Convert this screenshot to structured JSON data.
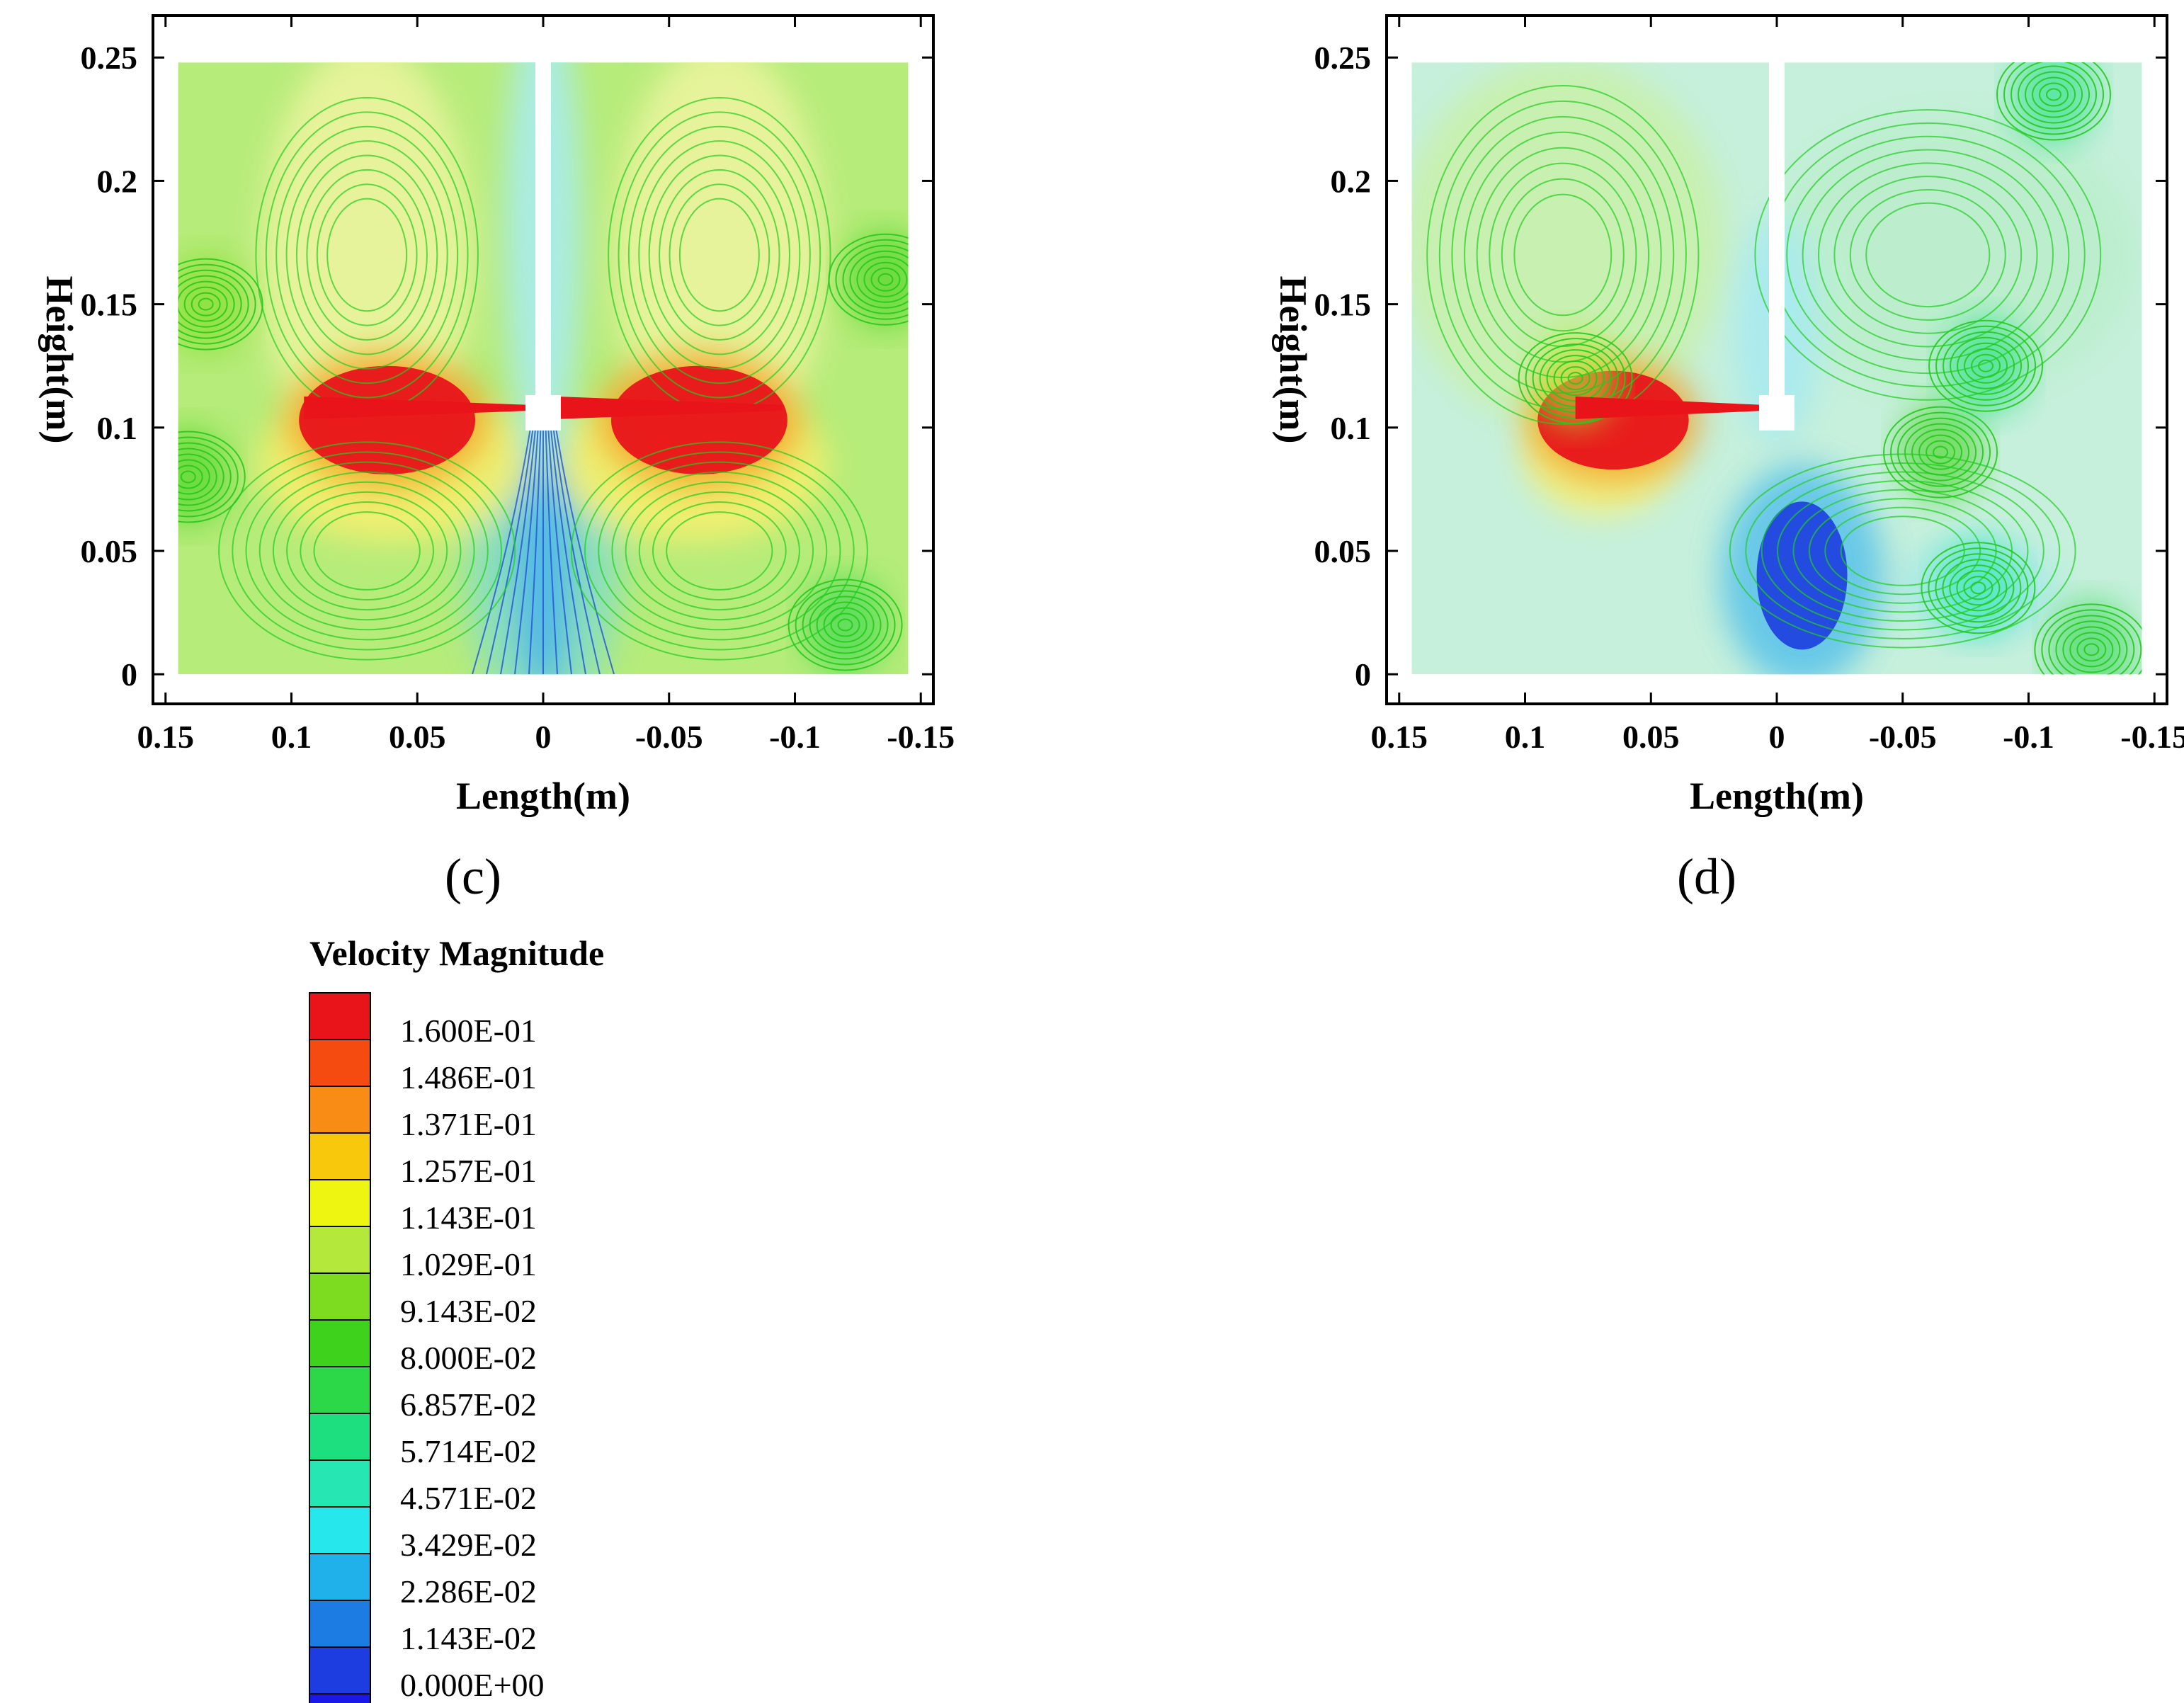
{
  "chart_data": [
    {
      "type": "contour",
      "panel_label": "(c)",
      "xlabel": "Length(m)",
      "ylabel": "Height(m)",
      "xlim": [
        0.155,
        -0.155
      ],
      "ylim": [
        -0.012,
        0.267
      ],
      "x_ticks": [
        0.15,
        0.1,
        0.05,
        0,
        -0.05,
        -0.1,
        -0.15
      ],
      "x_tick_labels": [
        "0.15",
        "0.1",
        "0.05",
        "0",
        "-0.05",
        "-0.1",
        "-0.15"
      ],
      "y_ticks": [
        0,
        0.05,
        0.1,
        0.15,
        0.2,
        0.25
      ],
      "y_tick_labels": [
        "0",
        "0.05",
        "0.1",
        "0.15",
        "0.2",
        "0.25"
      ],
      "field": "Velocity Magnitude",
      "flow_domain": {
        "x": [
          0.145,
          -0.145
        ],
        "y": [
          0,
          0.248
        ]
      },
      "impeller_height": 0.108,
      "impeller_blades": [
        {
          "x": [
            0.095,
            0.005
          ],
          "y": 0.108
        },
        {
          "x": [
            -0.005,
            -0.095
          ],
          "y": 0.108
        }
      ],
      "features": [
        {
          "kind": "high-velocity region",
          "x": 0.062,
          "y": 0.103,
          "rx": 0.035,
          "ry": 0.022,
          "level": 0.16
        },
        {
          "kind": "high-velocity region",
          "x": -0.062,
          "y": 0.103,
          "rx": 0.035,
          "ry": 0.022,
          "level": 0.16
        },
        {
          "kind": "vortex",
          "x": 0.134,
          "y": 0.15,
          "level": 0.09
        },
        {
          "kind": "vortex",
          "x": -0.136,
          "y": 0.16,
          "level": 0.08
        },
        {
          "kind": "vortex",
          "x": -0.12,
          "y": 0.02,
          "level": 0.07
        },
        {
          "kind": "vortex",
          "x": 0.141,
          "y": 0.08,
          "level": 0.08
        },
        {
          "kind": "low-velocity jet",
          "x": 0.0,
          "y": 0.04,
          "level": 0.02
        }
      ]
    },
    {
      "type": "contour",
      "panel_label": "(d)",
      "xlabel": "Length(m)",
      "ylabel": "Height(m)",
      "xlim": [
        0.155,
        -0.155
      ],
      "ylim": [
        -0.012,
        0.267
      ],
      "x_ticks": [
        0.15,
        0.1,
        0.05,
        0,
        -0.05,
        -0.1,
        -0.15
      ],
      "x_tick_labels": [
        "0.15",
        "0.1",
        "0.05",
        "0",
        "-0.05",
        "-0.1",
        "-0.15"
      ],
      "y_ticks": [
        0,
        0.05,
        0.1,
        0.15,
        0.2,
        0.25
      ],
      "y_tick_labels": [
        "0",
        "0.05",
        "0.1",
        "0.15",
        "0.2",
        "0.25"
      ],
      "field": "Velocity Magnitude",
      "flow_domain": {
        "x": [
          0.145,
          -0.145
        ],
        "y": [
          0,
          0.248
        ]
      },
      "impeller_height": 0.108,
      "impeller_blades": [
        {
          "x": [
            0.08,
            0.005
          ],
          "y": 0.108
        }
      ],
      "features": [
        {
          "kind": "high-velocity region",
          "x": 0.065,
          "y": 0.103,
          "rx": 0.03,
          "ry": 0.02,
          "level": 0.16
        },
        {
          "kind": "vortex",
          "x": 0.08,
          "y": 0.12,
          "level": 0.1
        },
        {
          "kind": "vortex",
          "x": -0.065,
          "y": 0.09,
          "level": 0.08
        },
        {
          "kind": "vortex",
          "x": -0.083,
          "y": 0.125,
          "level": 0.06
        },
        {
          "kind": "vortex",
          "x": -0.08,
          "y": 0.035,
          "level": 0.05
        },
        {
          "kind": "vortex",
          "x": -0.11,
          "y": 0.235,
          "level": 0.06
        },
        {
          "kind": "vortex",
          "x": -0.125,
          "y": 0.01,
          "level": 0.07
        },
        {
          "kind": "low-velocity region",
          "x": -0.01,
          "y": 0.04,
          "rx": 0.018,
          "ry": 0.03,
          "level": 0.005
        }
      ]
    }
  ],
  "legend": {
    "title": "Velocity Magnitude",
    "levels": [
      {
        "label": "1.600E-01",
        "color": "#e8141a"
      },
      {
        "label": "1.486E-01",
        "color": "#f54a10"
      },
      {
        "label": "1.371E-01",
        "color": "#f98c14"
      },
      {
        "label": "1.257E-01",
        "color": "#f8c80c"
      },
      {
        "label": "1.143E-01",
        "color": "#eef510"
      },
      {
        "label": "1.029E-01",
        "color": "#b4e83a"
      },
      {
        "label": "9.143E-02",
        "color": "#7ddb20"
      },
      {
        "label": "8.000E-02",
        "color": "#3fd21c"
      },
      {
        "label": "6.857E-02",
        "color": "#2cd748"
      },
      {
        "label": "5.714E-02",
        "color": "#1edf80"
      },
      {
        "label": "4.571E-02",
        "color": "#26e6b4"
      },
      {
        "label": "3.429E-02",
        "color": "#26e8ec"
      },
      {
        "label": "2.286E-02",
        "color": "#20b0ea"
      },
      {
        "label": "1.143E-02",
        "color": "#1c7ce4"
      },
      {
        "label": "0.000E+00",
        "color": "#1d3de0"
      },
      {
        "label": "",
        "color": "#1a18e6"
      }
    ]
  }
}
